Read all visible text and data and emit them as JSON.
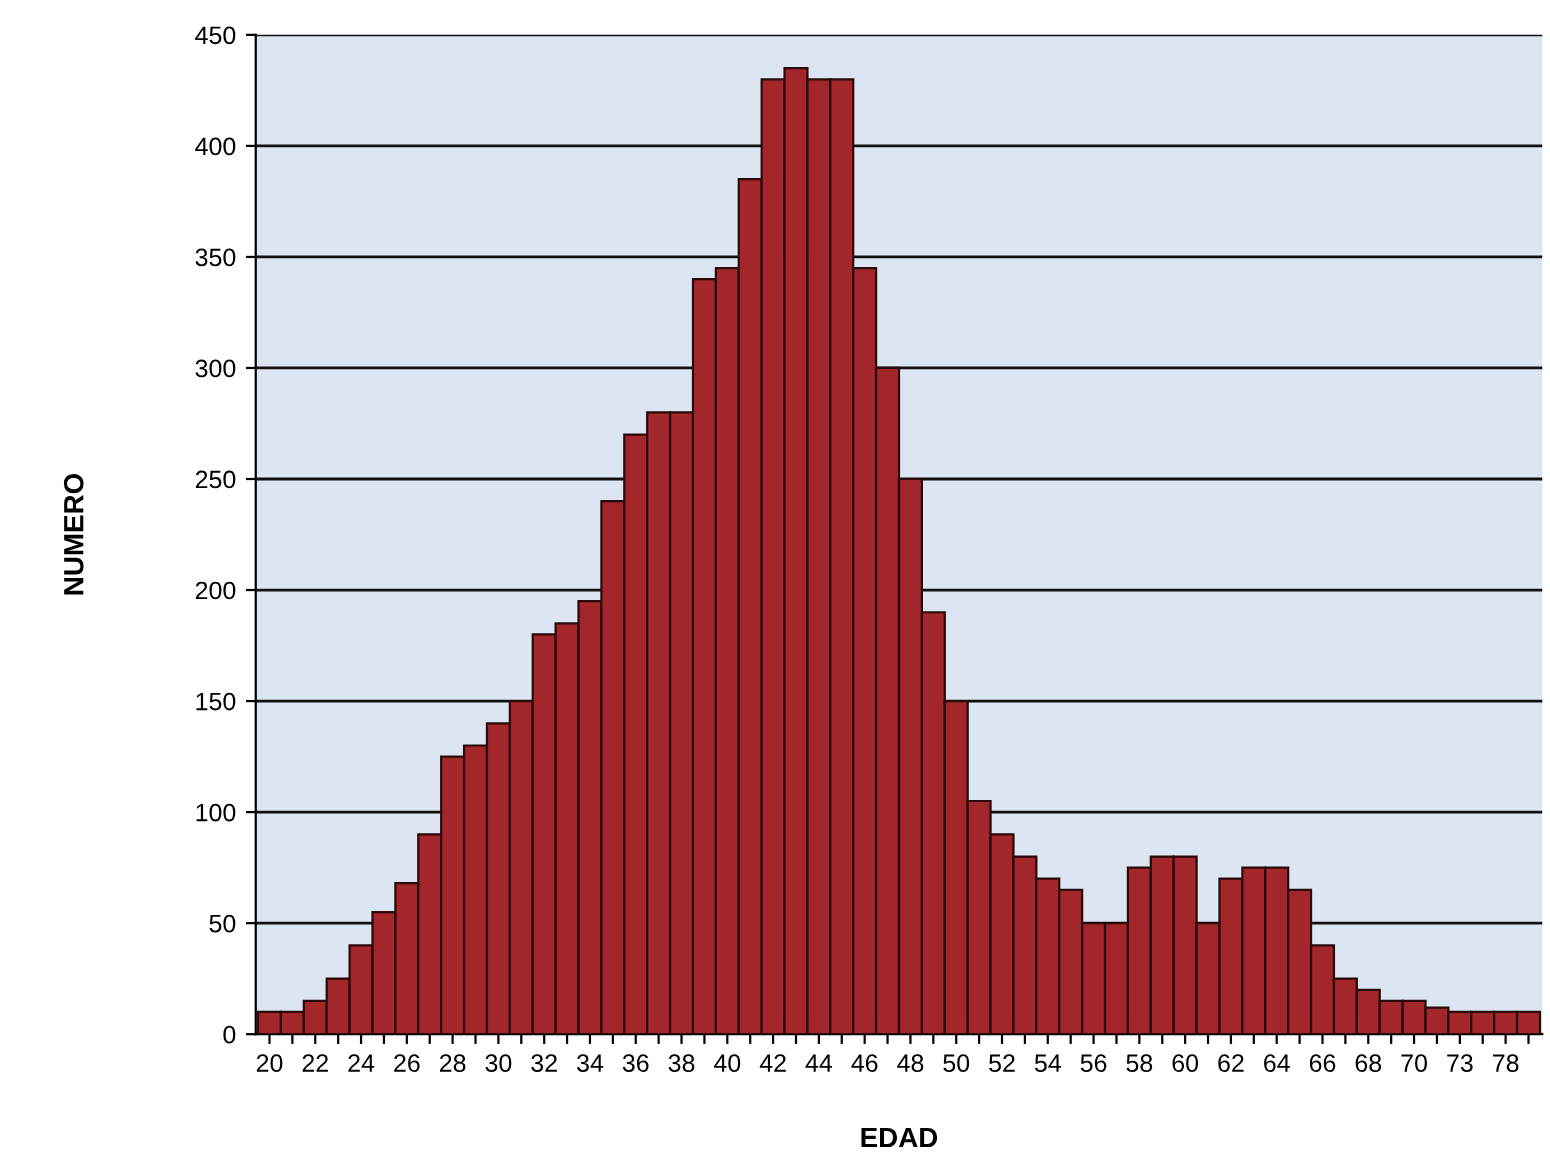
{
  "chart_data": {
    "type": "bar",
    "xlabel": "EDAD",
    "ylabel": "NUMERO",
    "categories": [
      "20",
      null,
      "22",
      null,
      "24",
      null,
      "26",
      null,
      "28",
      null,
      "30",
      null,
      "32",
      null,
      "34",
      null,
      "36",
      null,
      "38",
      null,
      "40",
      null,
      "42",
      null,
      "44",
      null,
      "46",
      null,
      "48",
      null,
      "50",
      null,
      "52",
      null,
      "54",
      null,
      "56",
      null,
      "58",
      null,
      "60",
      null,
      "62",
      null,
      "64",
      null,
      "66",
      null,
      "68",
      null,
      "70",
      null,
      "73",
      null,
      "78",
      null
    ],
    "values": [
      10,
      10,
      15,
      25,
      40,
      55,
      68,
      90,
      125,
      130,
      140,
      150,
      180,
      185,
      195,
      240,
      270,
      280,
      280,
      340,
      345,
      385,
      430,
      435,
      430,
      430,
      345,
      300,
      250,
      190,
      150,
      105,
      90,
      80,
      70,
      65,
      50,
      50,
      75,
      80,
      80,
      50,
      70,
      75,
      75,
      65,
      40,
      25,
      20,
      15,
      15,
      12,
      10,
      10,
      10,
      10
    ],
    "color": "#a3272a",
    "ylim": [
      0,
      450
    ],
    "yticks": [
      0,
      50,
      100,
      150,
      200,
      250,
      300,
      350,
      400,
      450
    ],
    "grid": "y"
  }
}
